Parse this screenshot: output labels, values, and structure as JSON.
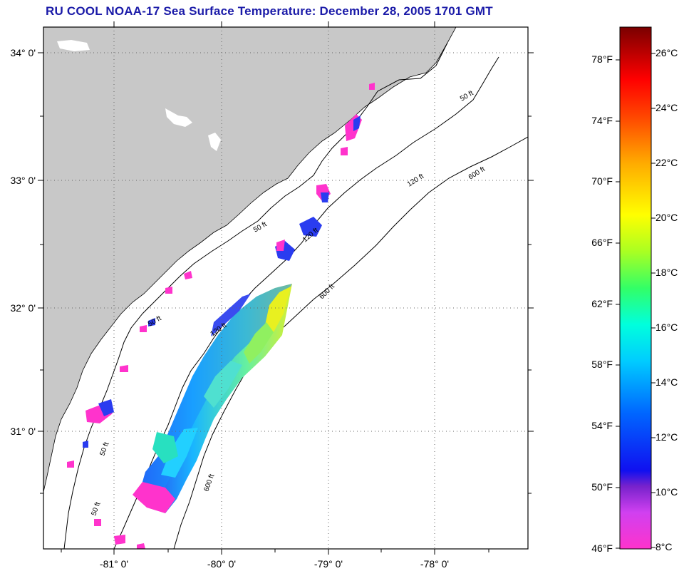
{
  "title": "RU COOL  NOAA-17  Sea Surface Temperature:  December 28, 2005 1701 GMT",
  "map": {
    "lat_labels": [
      "34° 0'",
      "33° 0'",
      "32° 0'",
      "31° 0'"
    ],
    "lon_labels": [
      "-81° 0'",
      "-80° 0'",
      "-79° 0'",
      "-78° 0'"
    ],
    "isobath_labels": [
      "50 ft",
      "120 ft",
      "600 ft"
    ],
    "colors": {
      "land": "#c8c8c8",
      "ocean": "#ffffff",
      "grid": "#666666"
    }
  },
  "colorbar": {
    "fahrenheit_labels": [
      "78°F",
      "74°F",
      "70°F",
      "66°F",
      "62°F",
      "58°F",
      "54°F",
      "50°F",
      "46°F"
    ],
    "celsius_labels": [
      "26°C",
      "24°C",
      "22°C",
      "20°C",
      "18°C",
      "16°C",
      "14°C",
      "12°C",
      "10°C",
      "8°C"
    ]
  }
}
